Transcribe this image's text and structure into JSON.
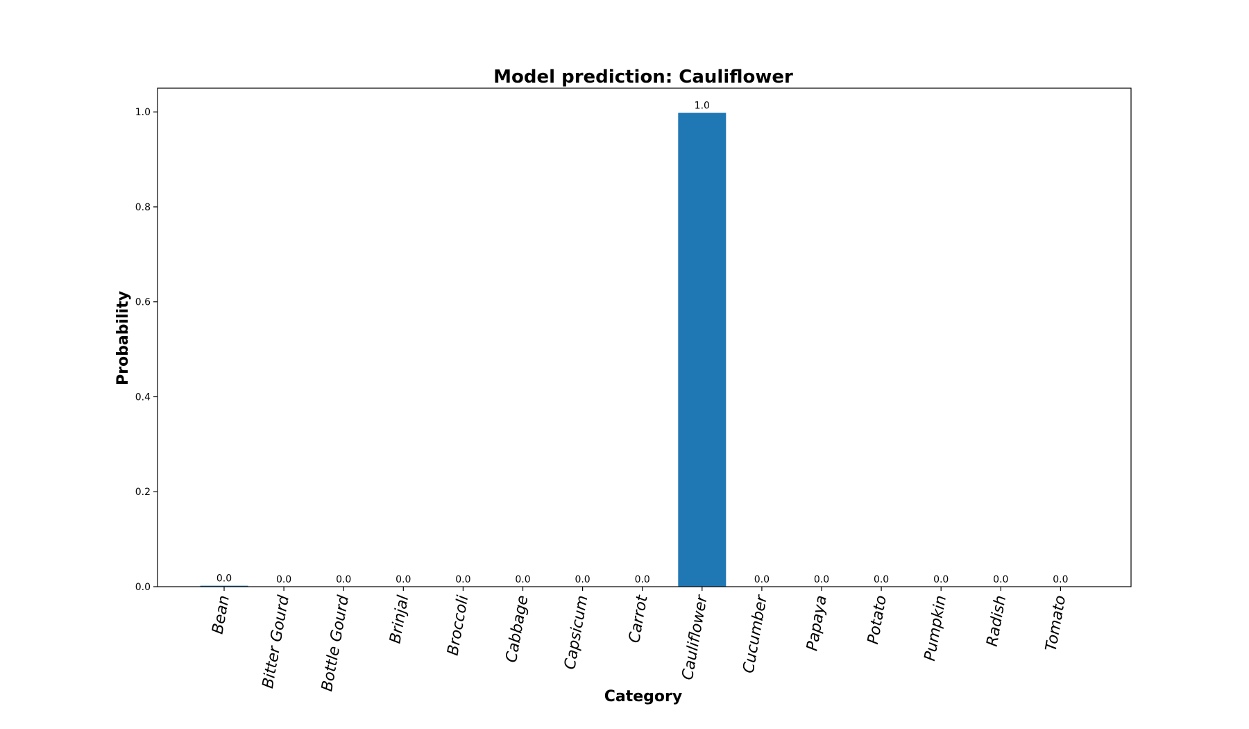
{
  "chart_data": {
    "type": "bar",
    "title": "Model prediction: Cauliflower",
    "xlabel": "Category",
    "ylabel": "Probability",
    "categories": [
      "Bean",
      "Bitter Gourd",
      "Bottle Gourd",
      "Brinjal",
      "Broccoli",
      "Cabbage",
      "Capsicum",
      "Carrot",
      "Cauliflower",
      "Cucumber",
      "Papaya",
      "Potato",
      "Pumpkin",
      "Radish",
      "Tomato"
    ],
    "values": [
      0.002,
      0.0,
      0.0,
      0.0,
      0.0,
      0.0,
      0.0,
      0.0,
      0.998,
      0.0,
      0.0,
      0.0,
      0.0,
      0.0,
      0.0
    ],
    "data_labels": [
      "0.0",
      "0.0",
      "0.0",
      "0.0",
      "0.0",
      "0.0",
      "0.0",
      "0.0",
      "1.0",
      "0.0",
      "0.0",
      "0.0",
      "0.0",
      "0.0",
      "0.0"
    ],
    "ylim": [
      0.0,
      1.05
    ],
    "yticks": [
      0.0,
      0.2,
      0.4,
      0.6,
      0.8,
      1.0
    ],
    "ytick_labels": [
      "0.0",
      "0.2",
      "0.4",
      "0.6",
      "0.8",
      "1.0"
    ],
    "grid": false,
    "legend": "none",
    "bar_color": "#1f77b4"
  }
}
